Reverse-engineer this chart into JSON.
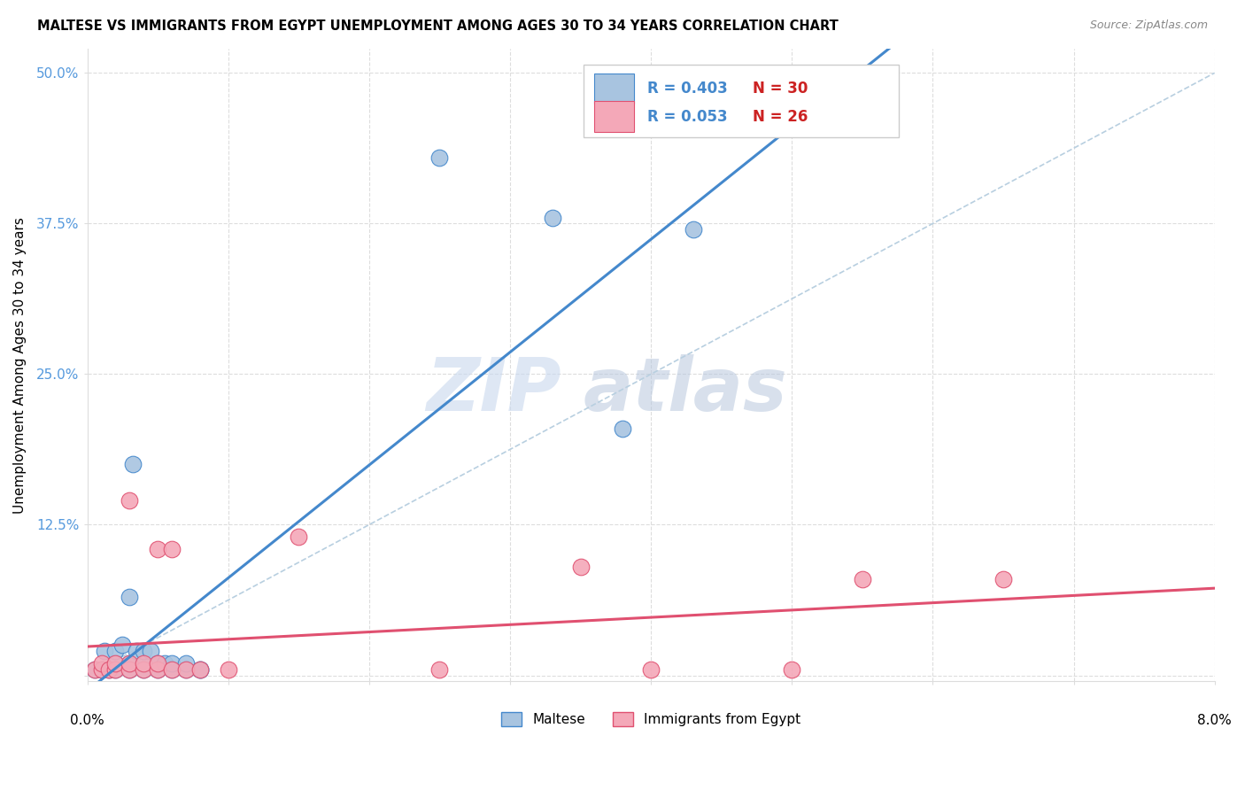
{
  "title": "MALTESE VS IMMIGRANTS FROM EGYPT UNEMPLOYMENT AMONG AGES 30 TO 34 YEARS CORRELATION CHART",
  "source": "Source: ZipAtlas.com",
  "ylabel": "Unemployment Among Ages 30 to 34 years",
  "xlim": [
    0.0,
    0.08
  ],
  "ylim": [
    -0.005,
    0.52
  ],
  "ytick_positions": [
    0.0,
    0.125,
    0.25,
    0.375,
    0.5
  ],
  "ytick_labels": [
    "",
    "12.5%",
    "25.0%",
    "37.5%",
    "50.0%"
  ],
  "xtick_positions": [
    0.0,
    0.01,
    0.02,
    0.03,
    0.04,
    0.05,
    0.06,
    0.07,
    0.08
  ],
  "legend1_R": "R = 0.403",
  "legend1_N": "N = 30",
  "legend2_R": "R = 0.053",
  "legend2_N": "N = 26",
  "maltese_color": "#a8c4e0",
  "egypt_color": "#f4a8b8",
  "maltese_line_color": "#4488cc",
  "egypt_line_color": "#e05070",
  "dashed_line_color": "#b8cfe0",
  "grid_color": "#dddddd",
  "maltese_x": [
    0.0005,
    0.001,
    0.0012,
    0.0015,
    0.002,
    0.002,
    0.002,
    0.0025,
    0.003,
    0.003,
    0.003,
    0.0032,
    0.0035,
    0.004,
    0.004,
    0.004,
    0.0045,
    0.005,
    0.005,
    0.0055,
    0.006,
    0.006,
    0.007,
    0.007,
    0.008,
    0.008,
    0.025,
    0.033,
    0.038,
    0.043
  ],
  "maltese_y": [
    0.005,
    0.005,
    0.02,
    0.005,
    0.005,
    0.01,
    0.02,
    0.025,
    0.005,
    0.01,
    0.065,
    0.175,
    0.02,
    0.005,
    0.01,
    0.02,
    0.02,
    0.005,
    0.01,
    0.01,
    0.005,
    0.01,
    0.005,
    0.01,
    0.005,
    0.005,
    0.43,
    0.38,
    0.205,
    0.37
  ],
  "egypt_x": [
    0.0005,
    0.001,
    0.001,
    0.0015,
    0.002,
    0.002,
    0.003,
    0.003,
    0.003,
    0.004,
    0.004,
    0.005,
    0.005,
    0.005,
    0.006,
    0.006,
    0.007,
    0.008,
    0.01,
    0.015,
    0.025,
    0.035,
    0.04,
    0.05,
    0.055,
    0.065
  ],
  "egypt_y": [
    0.005,
    0.005,
    0.01,
    0.005,
    0.005,
    0.01,
    0.005,
    0.01,
    0.145,
    0.005,
    0.01,
    0.005,
    0.01,
    0.105,
    0.005,
    0.105,
    0.005,
    0.005,
    0.005,
    0.115,
    0.005,
    0.09,
    0.005,
    0.005,
    0.08,
    0.08
  ],
  "legend_label1": "Maltese",
  "legend_label2": "Immigrants from Egypt"
}
